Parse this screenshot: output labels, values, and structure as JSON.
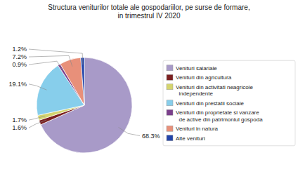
{
  "chart_data": {
    "type": "pie",
    "title": "Structura veniturilor totale ale gospodariilor, pe surse de formare,\nin trimestrul IV 2020",
    "categories": [
      "Venituri salariale",
      "Venituri din agricultura",
      "Venituri din activitati neagricole\n  independente",
      "Venituri din prestatii sociale",
      "Venituri din proprietate si vanzare\n  de active din patrimoniul gospoda",
      "Venituri in natura",
      "Alte venituri"
    ],
    "values": [
      68.3,
      1.6,
      1.7,
      19.1,
      0.9,
      7.2,
      1.2
    ],
    "value_labels": [
      "68.3%",
      "1.6%",
      "1.7%",
      "19.1%",
      "0.9%",
      "7.2%",
      "1.2%"
    ],
    "colors": [
      "#a89ac8",
      "#7b2020",
      "#d4d46e",
      "#87ceeb",
      "#7b3f8c",
      "#e8907a",
      "#2244aa"
    ],
    "data_labels": true,
    "legend": "right"
  }
}
